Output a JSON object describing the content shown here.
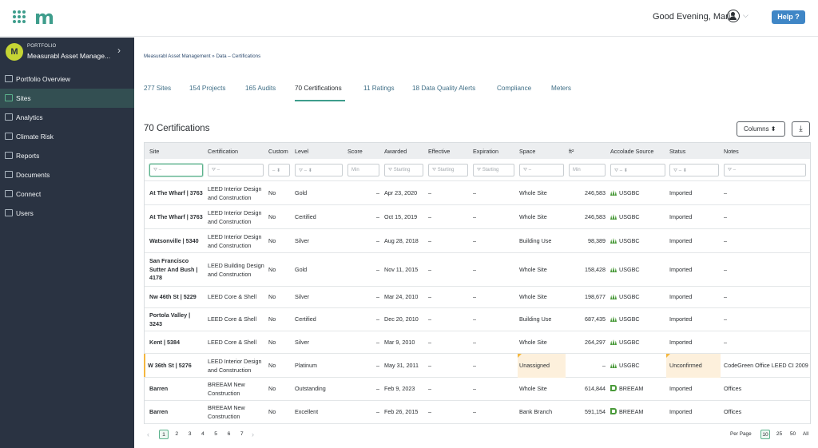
{
  "header": {
    "logo": "m",
    "greeting": "Good Evening, Maria",
    "help_label": "Help ?"
  },
  "sidebar": {
    "avatar_letter": "M",
    "portfolio_label": "PORTFOLIO",
    "portfolio_name": "Measurabl Asset Manage...",
    "items": [
      {
        "label": "Portfolio Overview",
        "icon": "overview-icon"
      },
      {
        "label": "Sites",
        "icon": "sites-icon",
        "active": true
      },
      {
        "label": "Analytics",
        "icon": "analytics-icon"
      },
      {
        "label": "Climate Risk",
        "icon": "climate-icon"
      },
      {
        "label": "Reports",
        "icon": "reports-icon"
      },
      {
        "label": "Documents",
        "icon": "documents-icon"
      },
      {
        "label": "Connect",
        "icon": "connect-icon"
      },
      {
        "label": "Users",
        "icon": "users-icon"
      }
    ]
  },
  "breadcrumb": "Measurabl Asset Management  »  Data – Certifications",
  "tabs": [
    {
      "label": "277 Sites"
    },
    {
      "label": "154 Projects"
    },
    {
      "label": "165 Audits"
    },
    {
      "label": "70 Certifications",
      "active": true
    },
    {
      "label": "11 Ratings"
    },
    {
      "label": "18 Data Quality Alerts"
    },
    {
      "label": "Compliance"
    },
    {
      "label": "Meters"
    }
  ],
  "section_title": "70 Certifications",
  "columns_label": "Columns ⬍",
  "download_icon": "download-icon",
  "table": {
    "headers": [
      "Site",
      "Certification",
      "Custom",
      "Level",
      "Score",
      "Awarded",
      "Effective",
      "Expiration",
      "Space",
      "ft²",
      "Accolade Source",
      "Status",
      "Notes"
    ],
    "filters": {
      "site": "⛛ –",
      "certification": "⛛ –",
      "custom": "– ⬍",
      "level": "⛛ – ⬍",
      "score": "Min",
      "awarded": "⛛ Starting",
      "effective": "⛛ Starting",
      "expiration": "⛛ Starting",
      "space": "⛛ –",
      "ft2": "Min",
      "source": "⛛ – ⬍",
      "status": "⛛ – ⬍",
      "notes": "⛛ –"
    },
    "rows": [
      {
        "site": "At The Wharf | 3763",
        "certification": "LEED Interior Design and Construction",
        "custom": "No",
        "level": "Gold",
        "score": "–",
        "awarded": "Apr 23, 2020",
        "effective": "–",
        "expiration": "–",
        "space": "Whole Site",
        "ft2": "246,583",
        "source": "USGBC",
        "status": "Imported",
        "notes": "–"
      },
      {
        "site": "At The Wharf | 3763",
        "certification": "LEED Interior Design and Construction",
        "custom": "No",
        "level": "Certified",
        "score": "–",
        "awarded": "Oct 15, 2019",
        "effective": "–",
        "expiration": "–",
        "space": "Whole Site",
        "ft2": "246,583",
        "source": "USGBC",
        "status": "Imported",
        "notes": "–"
      },
      {
        "site": "Watsonville | 5340",
        "certification": "LEED Interior Design and Construction",
        "custom": "No",
        "level": "Silver",
        "score": "–",
        "awarded": "Aug 28, 2018",
        "effective": "–",
        "expiration": "–",
        "space": "Building Use",
        "ft2": "98,389",
        "source": "USGBC",
        "status": "Imported",
        "notes": "–"
      },
      {
        "site": "San Francisco Sutter And Bush | 4178",
        "certification": "LEED Building Design and Construction",
        "custom": "No",
        "level": "Gold",
        "score": "–",
        "awarded": "Nov 11, 2015",
        "effective": "–",
        "expiration": "–",
        "space": "Whole Site",
        "ft2": "158,428",
        "source": "USGBC",
        "status": "Imported",
        "notes": "–"
      },
      {
        "site": "Nw 46th St | 5229",
        "certification": "LEED Core & Shell",
        "custom": "No",
        "level": "Silver",
        "score": "–",
        "awarded": "Mar 24, 2010",
        "effective": "–",
        "expiration": "–",
        "space": "Whole Site",
        "ft2": "198,677",
        "source": "USGBC",
        "status": "Imported",
        "notes": "–"
      },
      {
        "site": "Portola Valley | 3243",
        "certification": "LEED Core & Shell",
        "custom": "No",
        "level": "Certified",
        "score": "–",
        "awarded": "Dec 20, 2010",
        "effective": "–",
        "expiration": "–",
        "space": "Building Use",
        "ft2": "687,435",
        "source": "USGBC",
        "status": "Imported",
        "notes": "–"
      },
      {
        "site": "Kent | 5384",
        "certification": "LEED Core & Shell",
        "custom": "No",
        "level": "Silver",
        "score": "–",
        "awarded": "Mar 9, 2010",
        "effective": "–",
        "expiration": "–",
        "space": "Whole Site",
        "ft2": "264,297",
        "source": "USGBC",
        "status": "Imported",
        "notes": "–"
      },
      {
        "site": "W 36th St | 5276",
        "certification": "LEED Interior Design and Construction",
        "custom": "No",
        "level": "Platinum",
        "score": "–",
        "awarded": "May 31, 2011",
        "effective": "–",
        "expiration": "–",
        "space": "Unassigned",
        "ft2": "–",
        "source": "USGBC",
        "status": "Unconfirmed",
        "notes": "CodeGreen Office LEED CI 2009",
        "flagged": true
      },
      {
        "site": "Barren",
        "certification": "BREEAM New Construction",
        "custom": "No",
        "level": "Outstanding",
        "score": "–",
        "awarded": "Feb 9, 2023",
        "effective": "–",
        "expiration": "–",
        "space": "Whole Site",
        "ft2": "614,844",
        "source": "BREEAM",
        "status": "Imported",
        "notes": "Offices"
      },
      {
        "site": "Barren",
        "certification": "BREEAM New Construction",
        "custom": "No",
        "level": "Excellent",
        "score": "–",
        "awarded": "Feb 26, 2015",
        "effective": "–",
        "expiration": "–",
        "space": "Bank Branch",
        "ft2": "591,154",
        "source": "BREEAM",
        "status": "Imported",
        "notes": "Offices"
      }
    ]
  },
  "pagination": {
    "prev": "‹",
    "next": "›",
    "pages": [
      "1",
      "2",
      "3",
      "4",
      "5",
      "6",
      "7"
    ],
    "current": "1",
    "per_page_label": "Per Page",
    "per_page_options": [
      "10",
      "25",
      "50",
      "All"
    ],
    "per_page_selected": "10"
  },
  "colors": {
    "brand": "#3e9d8c",
    "sidebar_bg": "#2a3342",
    "help_button": "#3f86c6",
    "warning": "#f4b740"
  }
}
